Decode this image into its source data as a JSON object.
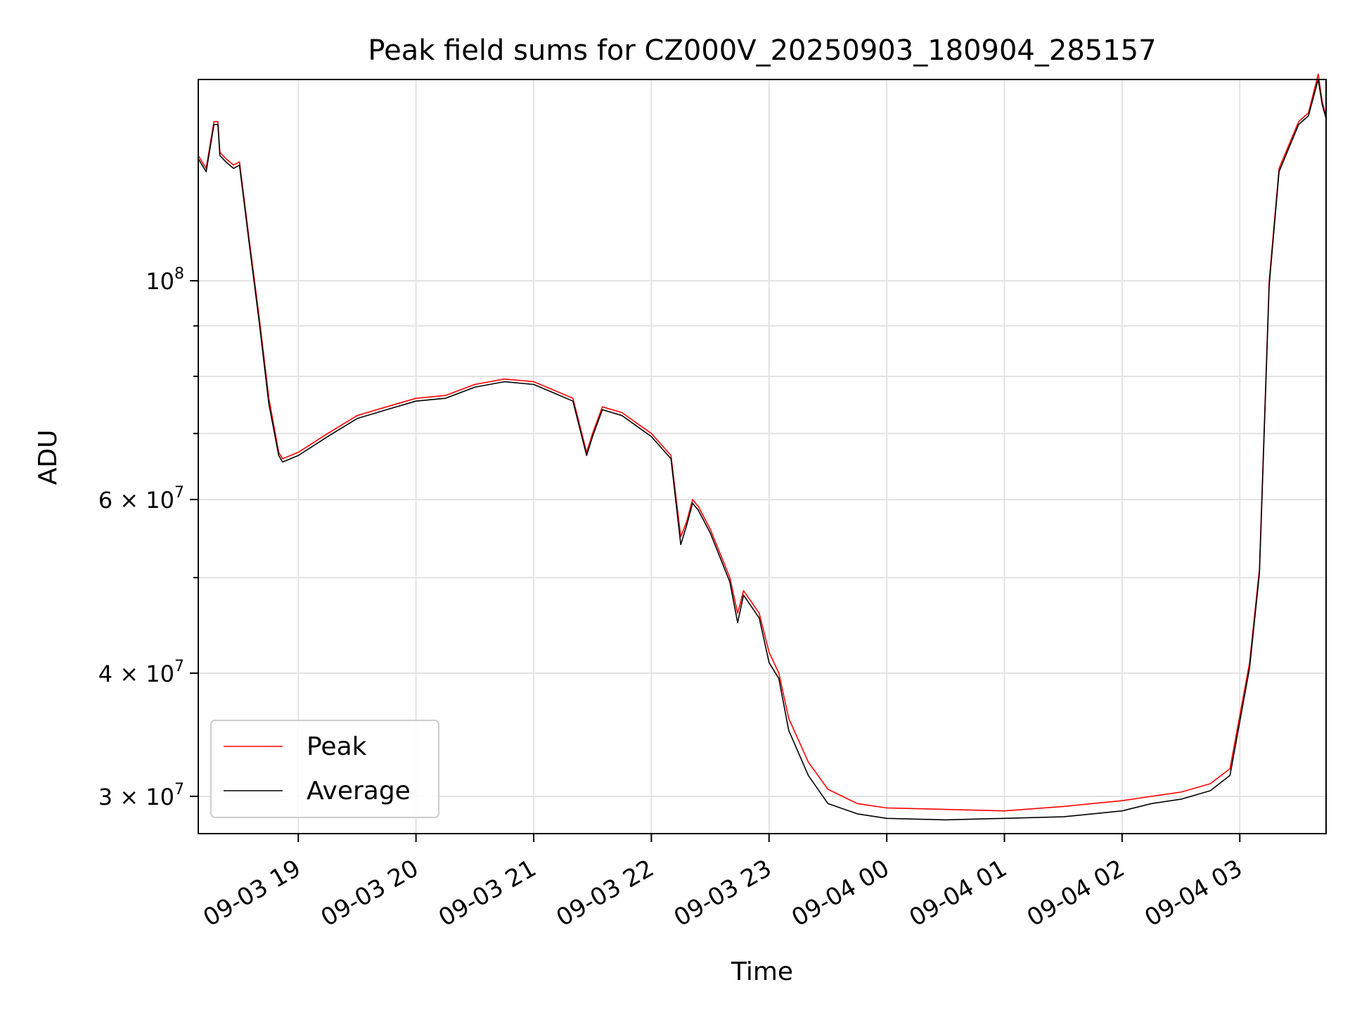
{
  "chart_data": {
    "type": "line",
    "title": "Peak field sums for CZ000V_20250903_180904_285157",
    "xlabel": "Time",
    "ylabel": "ADU",
    "y_scale": "log",
    "ylim": [
      27500000,
      160000000
    ],
    "xlim": [
      "2025-09-03 18:09",
      "2025-09-04 03:44"
    ],
    "grid": true,
    "legend_position": "lower-left",
    "x_ticks": [
      {
        "value": "2025-09-03 19:00",
        "label": "09-03 19"
      },
      {
        "value": "2025-09-03 20:00",
        "label": "09-03 20"
      },
      {
        "value": "2025-09-03 21:00",
        "label": "09-03 21"
      },
      {
        "value": "2025-09-03 22:00",
        "label": "09-03 22"
      },
      {
        "value": "2025-09-03 23:00",
        "label": "09-03 23"
      },
      {
        "value": "2025-09-04 00:00",
        "label": "09-04 00"
      },
      {
        "value": "2025-09-04 01:00",
        "label": "09-04 01"
      },
      {
        "value": "2025-09-04 02:00",
        "label": "09-04 02"
      },
      {
        "value": "2025-09-04 03:00",
        "label": "09-04 03"
      }
    ],
    "y_ticks": [
      {
        "value": 30000000,
        "label": "3 × 10",
        "exp": "7"
      },
      {
        "value": 40000000,
        "label": "4 × 10",
        "exp": "7"
      },
      {
        "value": 60000000,
        "label": "6 × 10",
        "exp": "7"
      },
      {
        "value": 100000000,
        "label": "10",
        "exp": "8"
      }
    ],
    "y_minor_ticks": [
      50000000,
      70000000,
      80000000,
      90000000
    ],
    "series": [
      {
        "name": "Peak",
        "color": "#ff0000",
        "x": [
          "2025-09-03 18:09",
          "2025-09-03 18:13",
          "2025-09-03 18:17",
          "2025-09-03 18:19",
          "2025-09-03 18:20",
          "2025-09-03 18:23",
          "2025-09-03 18:27",
          "2025-09-03 18:30",
          "2025-09-03 18:35",
          "2025-09-03 18:40",
          "2025-09-03 18:45",
          "2025-09-03 18:50",
          "2025-09-03 18:52",
          "2025-09-03 19:00",
          "2025-09-03 19:15",
          "2025-09-03 19:30",
          "2025-09-03 19:45",
          "2025-09-03 20:00",
          "2025-09-03 20:15",
          "2025-09-03 20:30",
          "2025-09-03 20:45",
          "2025-09-03 21:00",
          "2025-09-03 21:10",
          "2025-09-03 21:20",
          "2025-09-03 21:27",
          "2025-09-03 21:30",
          "2025-09-03 21:35",
          "2025-09-03 21:45",
          "2025-09-03 22:00",
          "2025-09-03 22:10",
          "2025-09-03 22:15",
          "2025-09-03 22:18",
          "2025-09-03 22:21",
          "2025-09-03 22:24",
          "2025-09-03 22:30",
          "2025-09-03 22:40",
          "2025-09-03 22:44",
          "2025-09-03 22:47",
          "2025-09-03 22:55",
          "2025-09-03 23:00",
          "2025-09-03 23:05",
          "2025-09-03 23:10",
          "2025-09-03 23:20",
          "2025-09-03 23:30",
          "2025-09-03 23:45",
          "2025-09-04 00:00",
          "2025-09-04 00:30",
          "2025-09-04 01:00",
          "2025-09-04 01:30",
          "2025-09-04 02:00",
          "2025-09-04 02:15",
          "2025-09-04 02:30",
          "2025-09-04 02:45",
          "2025-09-04 02:55",
          "2025-09-04 03:05",
          "2025-09-04 03:10",
          "2025-09-04 03:15",
          "2025-09-04 03:20",
          "2025-09-04 03:30",
          "2025-09-04 03:35",
          "2025-09-04 03:40",
          "2025-09-04 03:42",
          "2025-09-04 03:44"
        ],
        "y": [
          134000000,
          130000000,
          145000000,
          145000000,
          135000000,
          133000000,
          131000000,
          132000000,
          110000000,
          92000000,
          76000000,
          67000000,
          66000000,
          67000000,
          70000000,
          73000000,
          74500000,
          76000000,
          76500000,
          78500000,
          79500000,
          79000000,
          77500000,
          76000000,
          67000000,
          70000000,
          74500000,
          73500000,
          70000000,
          66500000,
          55000000,
          57000000,
          60000000,
          59000000,
          56000000,
          50000000,
          46000000,
          48500000,
          46000000,
          42000000,
          40000000,
          36000000,
          32500000,
          30500000,
          29500000,
          29200000,
          29100000,
          29000000,
          29300000,
          29700000,
          30000000,
          30300000,
          30900000,
          32000000,
          41000000,
          51000000,
          100000000,
          130000000,
          145000000,
          148000000,
          162000000,
          152000000,
          147000000
        ]
      },
      {
        "name": "Average",
        "color": "#000000",
        "x": [
          "2025-09-03 18:09",
          "2025-09-03 18:13",
          "2025-09-03 18:17",
          "2025-09-03 18:19",
          "2025-09-03 18:20",
          "2025-09-03 18:23",
          "2025-09-03 18:27",
          "2025-09-03 18:30",
          "2025-09-03 18:35",
          "2025-09-03 18:40",
          "2025-09-03 18:45",
          "2025-09-03 18:50",
          "2025-09-03 18:52",
          "2025-09-03 19:00",
          "2025-09-03 19:15",
          "2025-09-03 19:30",
          "2025-09-03 19:45",
          "2025-09-03 20:00",
          "2025-09-03 20:15",
          "2025-09-03 20:30",
          "2025-09-03 20:45",
          "2025-09-03 21:00",
          "2025-09-03 21:10",
          "2025-09-03 21:20",
          "2025-09-03 21:27",
          "2025-09-03 21:30",
          "2025-09-03 21:35",
          "2025-09-03 21:45",
          "2025-09-03 22:00",
          "2025-09-03 22:10",
          "2025-09-03 22:15",
          "2025-09-03 22:18",
          "2025-09-03 22:21",
          "2025-09-03 22:24",
          "2025-09-03 22:30",
          "2025-09-03 22:40",
          "2025-09-03 22:44",
          "2025-09-03 22:47",
          "2025-09-03 22:55",
          "2025-09-03 23:00",
          "2025-09-03 23:05",
          "2025-09-03 23:10",
          "2025-09-03 23:20",
          "2025-09-03 23:30",
          "2025-09-03 23:45",
          "2025-09-04 00:00",
          "2025-09-04 00:30",
          "2025-09-04 01:00",
          "2025-09-04 01:30",
          "2025-09-04 02:00",
          "2025-09-04 02:15",
          "2025-09-04 02:30",
          "2025-09-04 02:45",
          "2025-09-04 02:55",
          "2025-09-04 03:05",
          "2025-09-04 03:10",
          "2025-09-04 03:15",
          "2025-09-04 03:20",
          "2025-09-04 03:30",
          "2025-09-04 03:35",
          "2025-09-04 03:40",
          "2025-09-04 03:42",
          "2025-09-04 03:44"
        ],
        "y": [
          133000000,
          129000000,
          144000000,
          144000000,
          134000000,
          132000000,
          130000000,
          131000000,
          109000000,
          91000000,
          75000000,
          66500000,
          65500000,
          66500000,
          69500000,
          72500000,
          74000000,
          75500000,
          76000000,
          78000000,
          79000000,
          78500000,
          77000000,
          75500000,
          66500000,
          69500000,
          74000000,
          73000000,
          69500000,
          66000000,
          54000000,
          56500000,
          59500000,
          58500000,
          55500000,
          49500000,
          45000000,
          48000000,
          45500000,
          41000000,
          39500000,
          35000000,
          31500000,
          29500000,
          28800000,
          28500000,
          28400000,
          28500000,
          28600000,
          29000000,
          29500000,
          29800000,
          30400000,
          31500000,
          40500000,
          50500000,
          99000000,
          129000000,
          144000000,
          147000000,
          160000000,
          151000000,
          146000000
        ]
      }
    ]
  }
}
